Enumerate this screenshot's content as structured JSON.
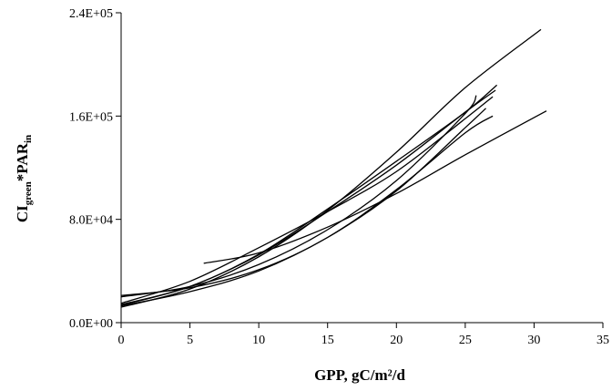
{
  "chart_data": {
    "type": "line",
    "title": "",
    "xlabel": "GPP, gC/m²/d",
    "ylabel": {
      "main1": "CI",
      "sub1": "green",
      "main2": "*PAR",
      "sub2": "in"
    },
    "xlim": [
      0,
      35
    ],
    "ylim": [
      0,
      240000
    ],
    "x_ticks": [
      "0",
      "5",
      "10",
      "15",
      "20",
      "25",
      "30",
      "35"
    ],
    "y_ticks": [
      "0.0E+00",
      "8.0E+04",
      "1.6E+05",
      "2.4E+05"
    ],
    "grid": false,
    "legend": "none",
    "series": [
      {
        "x": [
          0,
          5,
          10,
          15,
          20,
          25,
          30.5
        ],
        "y": [
          12000,
          26000,
          51000,
          87000,
          132000,
          182000,
          227000
        ]
      },
      {
        "x": [
          0,
          5,
          10,
          15,
          20,
          25,
          27.3
        ],
        "y": [
          14000,
          28000,
          53000,
          88000,
          125000,
          163000,
          184000
        ]
      },
      {
        "x": [
          0,
          5,
          10,
          15,
          20,
          25,
          27.2
        ],
        "y": [
          13500,
          28000,
          52500,
          86000,
          122000,
          163000,
          180000
        ]
      },
      {
        "x": [
          0,
          5,
          10,
          15,
          20,
          25,
          27.0
        ],
        "y": [
          15000,
          32000,
          58000,
          86000,
          117000,
          158000,
          175000
        ]
      },
      {
        "x": [
          0,
          5,
          10,
          15,
          20,
          25,
          27.0
        ],
        "y": [
          21000,
          27000,
          41000,
          66000,
          103000,
          147000,
          160000
        ]
      },
      {
        "x": [
          0,
          5,
          10,
          15,
          20,
          25,
          25.8
        ],
        "y": [
          20000,
          28000,
          45000,
          72000,
          110000,
          162000,
          176000
        ]
      },
      {
        "x": [
          6,
          10,
          15,
          20,
          25,
          30.9
        ],
        "y": [
          46000,
          54000,
          74000,
          100000,
          130000,
          164000
        ]
      },
      {
        "x": [
          0,
          5,
          10,
          15,
          20,
          25,
          26.5
        ],
        "y": [
          13000,
          24000,
          40000,
          66000,
          102000,
          151000,
          166000
        ]
      }
    ]
  }
}
